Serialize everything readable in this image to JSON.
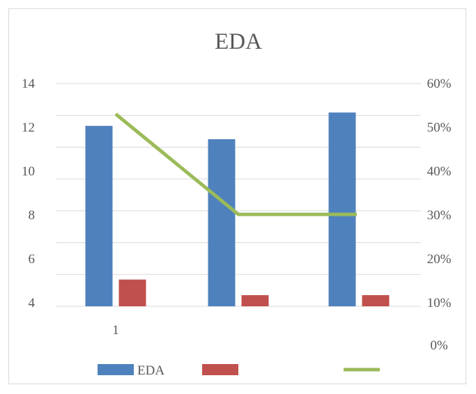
{
  "chart_data": {
    "type": "bar",
    "title": "EDA",
    "categories": [
      "1",
      "",
      ""
    ],
    "series": [
      {
        "name": "EDA",
        "axis": "left",
        "type": "bar",
        "color": "#4f81bd",
        "values": [
          12.1,
          11.5,
          12.7
        ]
      },
      {
        "name": "",
        "axis": "left",
        "type": "bar",
        "color": "#c0504d",
        "values": [
          5.2,
          4.5,
          4.5
        ]
      },
      {
        "name": "",
        "axis": "right",
        "type": "line",
        "color": "#9bbb59",
        "values": [
          0.53,
          0.3,
          0.3
        ]
      }
    ],
    "left_axis": {
      "min": 4,
      "max": 14,
      "ticks": [
        "14",
        "12",
        "10",
        "8",
        "6",
        "4"
      ]
    },
    "right_axis": {
      "min": 0,
      "max": 0.6,
      "ticks": [
        "60%",
        "50%",
        "40%",
        "30%",
        "20%",
        "10%",
        "0%"
      ]
    },
    "legend": {
      "placement": "bottom"
    },
    "grid": true
  }
}
